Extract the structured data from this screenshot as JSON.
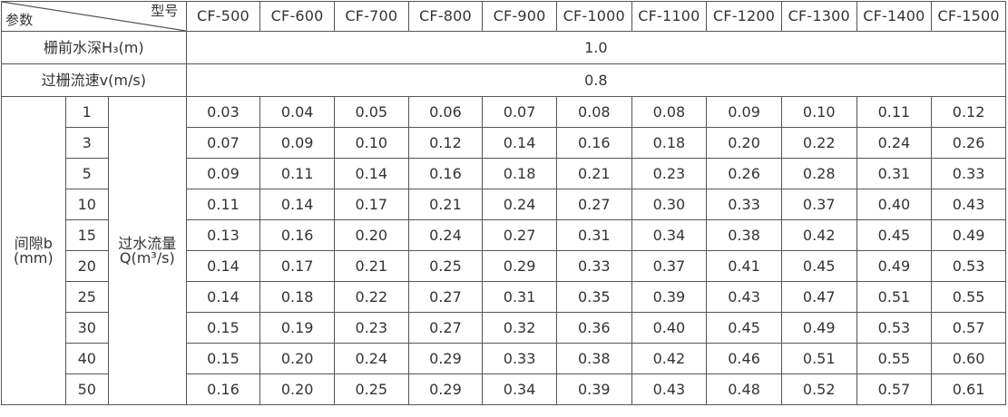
{
  "table": {
    "corner": {
      "left_label": "参数",
      "right_label": "型号"
    },
    "models": [
      "CF-500",
      "CF-600",
      "CF-700",
      "CF-800",
      "CF-900",
      "CF-1000",
      "CF-1100",
      "CF-1200",
      "CF-1300",
      "CF-1400",
      "CF-1500"
    ],
    "depth_row": {
      "label": "栅前水深H₃(m)",
      "value": "1.0"
    },
    "speed_row": {
      "label": "过栅流速v(m/s)",
      "value": "0.8"
    },
    "gap_label": {
      "line1": "间隙b",
      "line2": "(mm)"
    },
    "flow_label": {
      "line1": "过水流量",
      "line2": "Q(m³/s)"
    },
    "rows": [
      {
        "gap": "1",
        "values": [
          "0.03",
          "0.04",
          "0.05",
          "0.06",
          "0.07",
          "0.08",
          "0.08",
          "0.09",
          "0.10",
          "0.11",
          "0.12"
        ]
      },
      {
        "gap": "3",
        "values": [
          "0.07",
          "0.09",
          "0.10",
          "0.12",
          "0.14",
          "0.16",
          "0.18",
          "0.20",
          "0.22",
          "0.24",
          "0.26"
        ]
      },
      {
        "gap": "5",
        "values": [
          "0.09",
          "0.11",
          "0.14",
          "0.16",
          "0.18",
          "0.21",
          "0.23",
          "0.26",
          "0.28",
          "0.31",
          "0.33"
        ]
      },
      {
        "gap": "10",
        "values": [
          "0.11",
          "0.14",
          "0.17",
          "0.21",
          "0.24",
          "0.27",
          "0.30",
          "0.33",
          "0.37",
          "0.40",
          "0.43"
        ]
      },
      {
        "gap": "15",
        "values": [
          "0.13",
          "0.16",
          "0.20",
          "0.24",
          "0.27",
          "0.31",
          "0.34",
          "0.38",
          "0.42",
          "0.45",
          "0.49"
        ]
      },
      {
        "gap": "20",
        "values": [
          "0.14",
          "0.17",
          "0.21",
          "0.25",
          "0.29",
          "0.33",
          "0.37",
          "0.41",
          "0.45",
          "0.49",
          "0.53"
        ]
      },
      {
        "gap": "25",
        "values": [
          "0.14",
          "0.18",
          "0.22",
          "0.27",
          "0.31",
          "0.35",
          "0.39",
          "0.43",
          "0.47",
          "0.51",
          "0.55"
        ]
      },
      {
        "gap": "30",
        "values": [
          "0.15",
          "0.19",
          "0.23",
          "0.27",
          "0.32",
          "0.36",
          "0.40",
          "0.45",
          "0.49",
          "0.53",
          "0.57"
        ]
      },
      {
        "gap": "40",
        "values": [
          "0.15",
          "0.20",
          "0.24",
          "0.29",
          "0.33",
          "0.38",
          "0.42",
          "0.46",
          "0.51",
          "0.55",
          "0.60"
        ]
      },
      {
        "gap": "50",
        "values": [
          "0.16",
          "0.20",
          "0.25",
          "0.29",
          "0.34",
          "0.39",
          "0.43",
          "0.48",
          "0.52",
          "0.57",
          "0.61"
        ]
      }
    ]
  }
}
